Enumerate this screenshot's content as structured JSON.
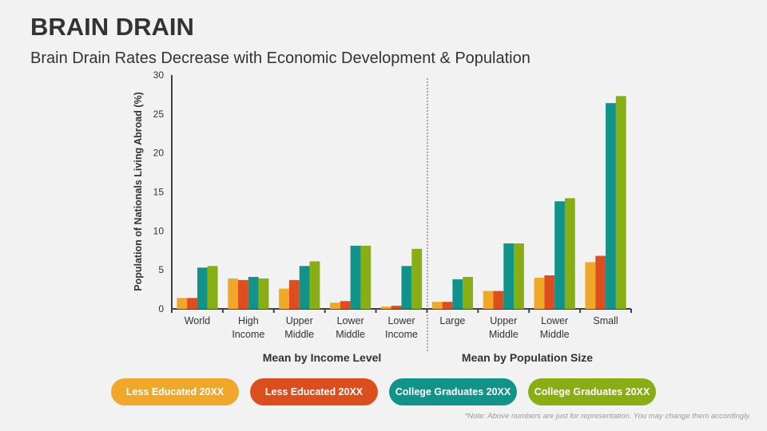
{
  "title": "BRAIN DRAIN",
  "subtitle": "Brain Drain Rates Decrease with Economic Development & Population",
  "note": "*Note: Above numbers are just for representation. You may change them accordingly.",
  "chart_data": {
    "type": "bar",
    "ylabel": "Population of Nationals Living Abroad (%)",
    "ylim": [
      0,
      30
    ],
    "yticks": [
      "0",
      "5",
      "10",
      "15",
      "20",
      "25",
      "30"
    ],
    "grid": false,
    "legend_placement": "bottom",
    "categories": [
      [
        "World"
      ],
      [
        "High",
        "Income"
      ],
      [
        "Upper",
        "Middle"
      ],
      [
        "Lower",
        "Middle"
      ],
      [
        "Lower",
        "Income"
      ],
      [
        "Large"
      ],
      [
        "Upper",
        "Middle"
      ],
      [
        "Lower",
        "Middle"
      ],
      [
        "Small"
      ]
    ],
    "group_labels": [
      "Mean by Income Level",
      "Mean by Population Size"
    ],
    "series": [
      {
        "name": "Less Educated 20XX",
        "color": "#F0A82A",
        "values": [
          1.4,
          3.9,
          2.6,
          0.8,
          0.3,
          0.9,
          2.3,
          4.0,
          6.0
        ]
      },
      {
        "name": "Less Educated 20XX",
        "color": "#DC4E1E",
        "values": [
          1.4,
          3.7,
          3.7,
          1.0,
          0.4,
          0.9,
          2.3,
          4.3,
          6.8
        ]
      },
      {
        "name": "College Graduates 20XX",
        "color": "#12938A",
        "values": [
          5.3,
          4.1,
          5.5,
          8.1,
          5.5,
          3.8,
          8.4,
          13.8,
          26.4
        ]
      },
      {
        "name": "College Graduates 20XX",
        "color": "#88AE14",
        "values": [
          5.5,
          3.9,
          6.1,
          8.1,
          7.7,
          4.1,
          8.4,
          14.2,
          27.3
        ]
      }
    ]
  }
}
